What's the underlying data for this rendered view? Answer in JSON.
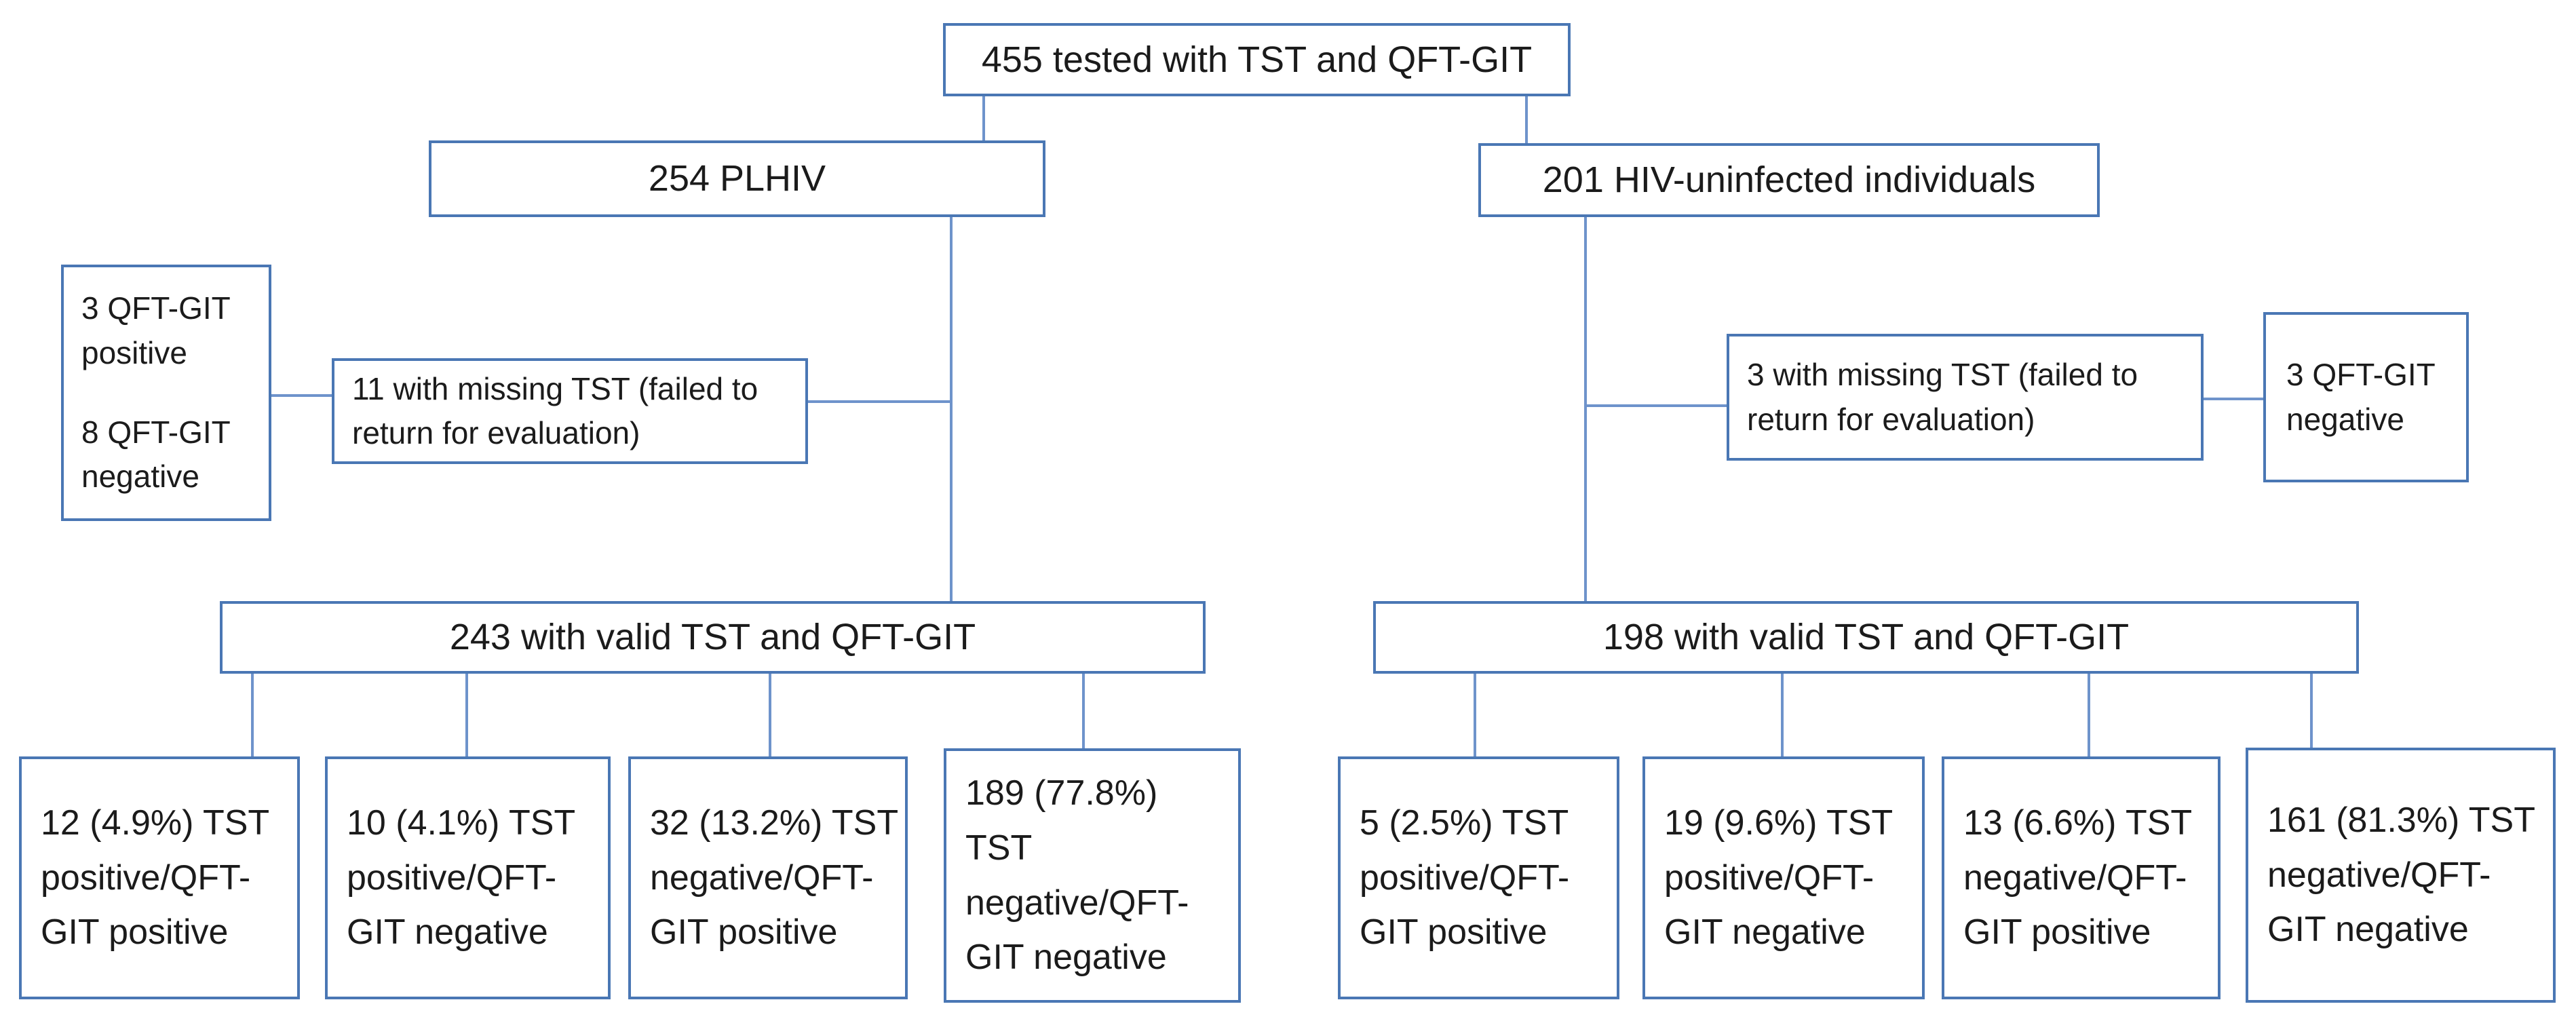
{
  "colors": {
    "border": "#4a77b4",
    "line": "#6e93cb",
    "text": "#1b1b1b",
    "background": "#ffffff"
  },
  "flowchart": {
    "total": "455 tested with TST and QFT-GIT",
    "plhiv": {
      "group": "254 PLHIV",
      "missing_tst": {
        "lines": [
          "11 with missing TST (failed to",
          "return for evaluation)"
        ]
      },
      "missing_qft_breakdown": {
        "positive": {
          "lines": [
            "3 QFT-GIT",
            "positive"
          ]
        },
        "negative": {
          "lines": [
            "8 QFT-GIT",
            "negative"
          ]
        }
      },
      "valid": "243 with valid TST and QFT-GIT",
      "results": [
        {
          "lines": [
            "12 (4.9%) TST",
            "positive/QFT-",
            "GIT positive"
          ]
        },
        {
          "lines": [
            "10 (4.1%) TST",
            "positive/QFT-",
            "GIT negative"
          ]
        },
        {
          "lines": [
            "32 (13.2%) TST",
            "negative/QFT-",
            "GIT positive"
          ]
        },
        {
          "lines": [
            "189 (77.8%) TST",
            "negative/QFT-",
            "GIT negative"
          ]
        }
      ]
    },
    "hiv_uninfected": {
      "group": "201 HIV-uninfected individuals",
      "missing_tst": {
        "lines": [
          "3 with missing TST (failed to",
          "return for evaluation)"
        ]
      },
      "missing_qft_breakdown": {
        "negative": {
          "lines": [
            "3 QFT-GIT",
            "negative"
          ]
        }
      },
      "valid": "198 with valid TST and QFT-GIT",
      "results": [
        {
          "lines": [
            "5 (2.5%) TST",
            "positive/QFT-",
            "GIT positive"
          ]
        },
        {
          "lines": [
            "19 (9.6%) TST",
            "positive/QFT-",
            "GIT negative"
          ]
        },
        {
          "lines": [
            "13 (6.6%) TST",
            "negative/QFT-",
            "GIT positive"
          ]
        },
        {
          "lines": [
            "161 (81.3%) TST",
            "negative/QFT-",
            "GIT negative"
          ]
        }
      ]
    }
  }
}
